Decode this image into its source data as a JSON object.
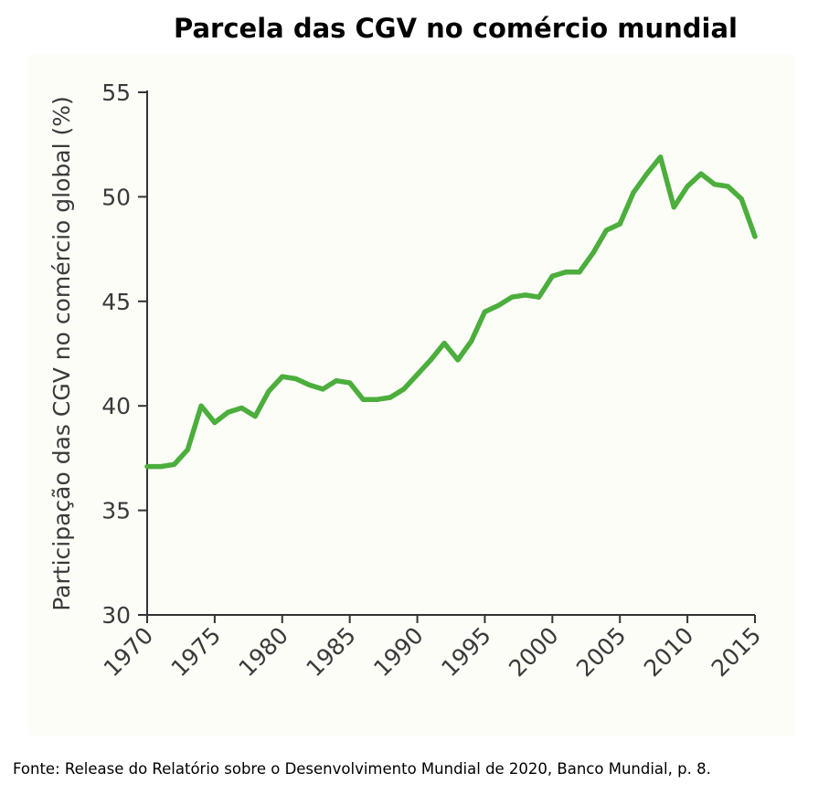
{
  "chart_data": {
    "type": "line",
    "title": "Parcela das CGV no comércio mundial",
    "xlabel": "",
    "ylabel": "Participação das CGV no comércio global (%)",
    "xlim": [
      1970,
      2015
    ],
    "ylim": [
      30,
      55
    ],
    "x_ticks": [
      "1970",
      "1975",
      "1980",
      "1985",
      "1990",
      "1995",
      "2000",
      "2005",
      "2010",
      "2015"
    ],
    "y_ticks": [
      "30",
      "35",
      "40",
      "45",
      "50",
      "55"
    ],
    "grid": false,
    "legend": "none",
    "series": [
      {
        "color": "#4cae3c",
        "x": [
          1970,
          1971,
          1972,
          1973,
          1974,
          1975,
          1976,
          1977,
          1978,
          1979,
          1980,
          1981,
          1982,
          1983,
          1984,
          1985,
          1986,
          1987,
          1988,
          1989,
          1990,
          1991,
          1992,
          1993,
          1994,
          1995,
          1996,
          1997,
          1998,
          1999,
          2000,
          2001,
          2002,
          2003,
          2004,
          2005,
          2006,
          2007,
          2008,
          2009,
          2010,
          2011,
          2012,
          2013,
          2014,
          2015
        ],
        "values": [
          37.1,
          37.1,
          37.2,
          37.9,
          40.0,
          39.2,
          39.7,
          39.9,
          39.5,
          40.7,
          41.4,
          41.3,
          41.0,
          40.8,
          41.2,
          41.1,
          40.3,
          40.3,
          40.4,
          40.8,
          41.5,
          42.2,
          43.0,
          42.2,
          43.1,
          44.5,
          44.8,
          45.2,
          45.3,
          45.2,
          46.2,
          46.4,
          46.4,
          47.3,
          48.4,
          48.7,
          50.2,
          51.1,
          51.9,
          49.5,
          50.5,
          51.1,
          50.6,
          50.5,
          49.9,
          48.1
        ]
      }
    ],
    "source": "Fonte: Release do Relatório sobre o Desenvolvimento Mundial de 2020, Banco Mundial, p. 8."
  }
}
